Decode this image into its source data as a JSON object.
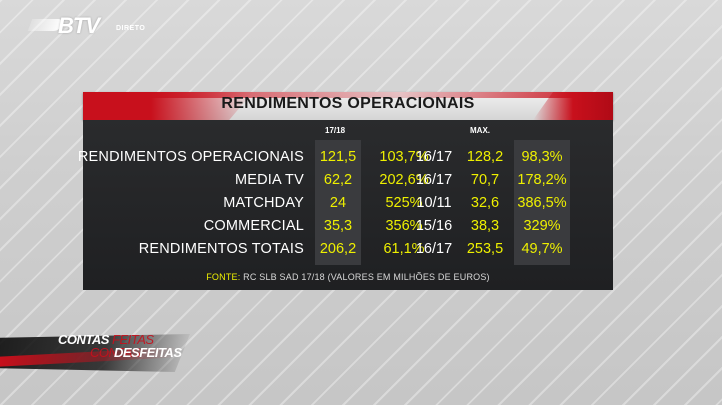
{
  "channel": {
    "logo_text": "BTV",
    "live_label": "DIRETO"
  },
  "banner": {
    "title": "RENDIMENTOS OPERACIONAIS"
  },
  "table": {
    "header_left": "17/18",
    "header_max": "MAX.",
    "rows": [
      {
        "label": "RENDIMENTOS OPERACIONAIS",
        "value": "121,5",
        "growth": "103,7%",
        "season": "16/17",
        "max_value": "128,2",
        "max_growth": "98,3%"
      },
      {
        "label": "MEDIA TV",
        "value": "62,2",
        "growth": "202,6%",
        "season": "16/17",
        "max_value": "70,7",
        "max_growth": "178,2%"
      },
      {
        "label": "MATCHDAY",
        "value": "24",
        "growth": "525%",
        "season": "10/11",
        "max_value": "32,6",
        "max_growth": "386,5%"
      },
      {
        "label": "COMMERCIAL",
        "value": "35,3",
        "growth": "356%",
        "season": "15/16",
        "max_value": "38,3",
        "max_growth": "329%"
      },
      {
        "label": "RENDIMENTOS TOTAIS",
        "value": "206,2",
        "growth": "61,1%",
        "season": "16/17",
        "max_value": "253,5",
        "max_growth": "49,7%"
      }
    ]
  },
  "source": {
    "label": "FONTE:",
    "text": "RC SLB SAD 17/18 (VALORES EM MILHÕES DE EUROS)"
  },
  "show_logo": {
    "word1": "CONTAS",
    "word1b": "FEITAS",
    "word2": "CONTAS",
    "word3": "DESFEITAS"
  },
  "colors": {
    "accent_red": "#c8101c",
    "value_yellow": "#eef000",
    "panel_dark": "#222325",
    "column_highlight": "#3a3b3e"
  }
}
